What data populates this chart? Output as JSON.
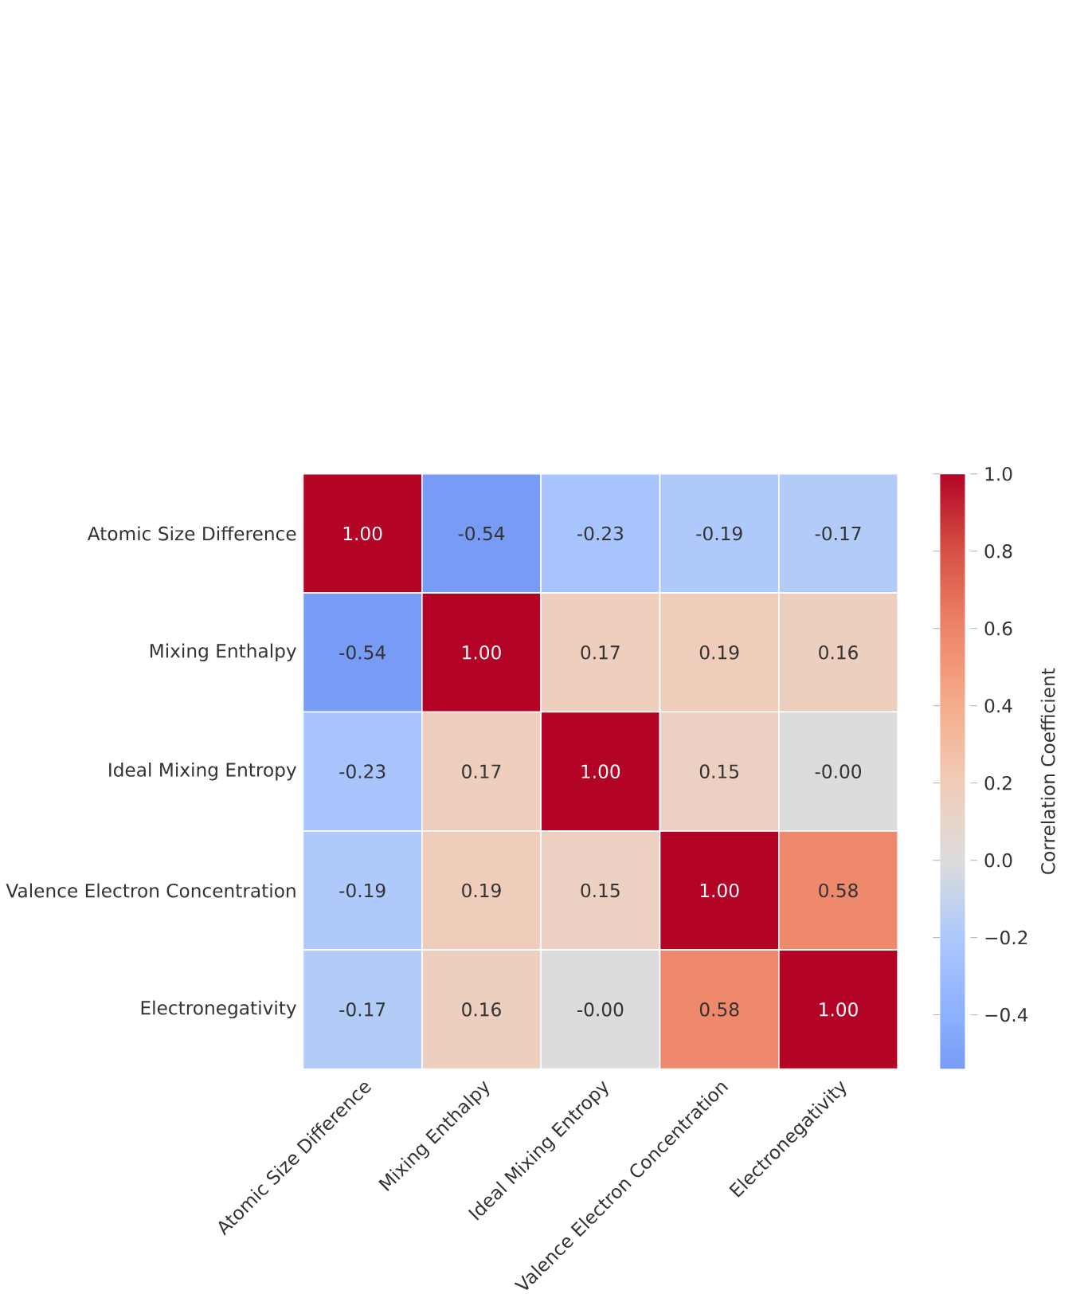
{
  "chart_data": {
    "type": "heatmap",
    "categories": [
      "Atomic Size Difference",
      "Mixing Enthalpy",
      "Ideal Mixing Entropy",
      "Valence Electron Concentration",
      "Electronegativity"
    ],
    "y_categories": [
      "Atomic Size Difference",
      "Mixing Enthalpy",
      "Ideal Mixing Entropy",
      "Valence Electron Concentration",
      "Electronegativity"
    ],
    "cells": [
      [
        1.0,
        -0.54,
        -0.23,
        -0.19,
        -0.17
      ],
      [
        -0.54,
        1.0,
        0.17,
        0.19,
        0.16
      ],
      [
        -0.23,
        0.17,
        1.0,
        0.15,
        0.0
      ],
      [
        -0.19,
        0.19,
        0.15,
        1.0,
        0.58
      ],
      [
        -0.17,
        0.16,
        0.0,
        0.58,
        1.0
      ]
    ],
    "cell_labels": [
      [
        "1.00",
        "-0.54",
        "-0.23",
        "-0.19",
        "-0.17"
      ],
      [
        "-0.54",
        "1.00",
        "0.17",
        "0.19",
        "0.16"
      ],
      [
        "-0.23",
        "0.17",
        "1.00",
        "0.15",
        "-0.00"
      ],
      [
        "-0.19",
        "0.19",
        "0.15",
        "1.00",
        "0.58"
      ],
      [
        "-0.17",
        "0.16",
        "-0.00",
        "0.58",
        "1.00"
      ]
    ],
    "clim": [
      -0.54,
      1.0
    ],
    "cticks": [
      {
        "value": -0.4,
        "label": "−0.4"
      },
      {
        "value": -0.2,
        "label": "−0.2"
      },
      {
        "value": 0.0,
        "label": "0.0"
      },
      {
        "value": 0.2,
        "label": "0.2"
      },
      {
        "value": 0.4,
        "label": "0.4"
      },
      {
        "value": 0.6,
        "label": "0.6"
      },
      {
        "value": 0.8,
        "label": "0.8"
      },
      {
        "value": 1.0,
        "label": "1.0"
      }
    ],
    "clabel": "Correlation Coefficient"
  }
}
